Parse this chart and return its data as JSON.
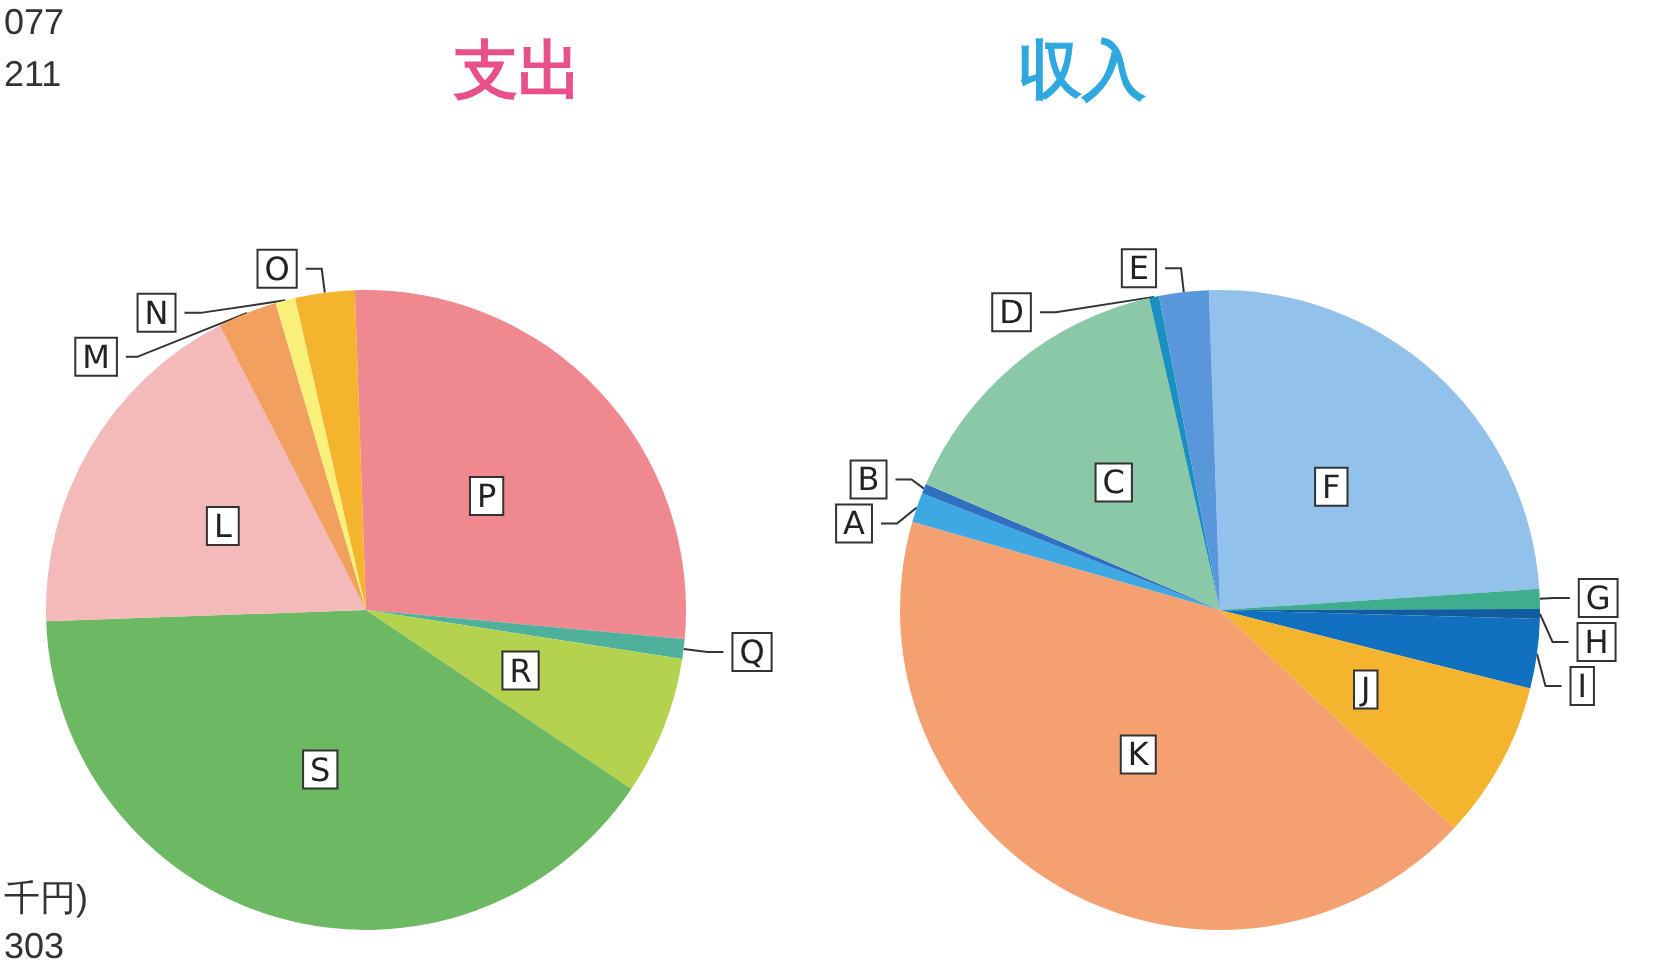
{
  "chart_data": [
    {
      "type": "pie",
      "title": "支出",
      "legend": false,
      "annotations": [
        "077",
        "211",
        "千円)",
        "303"
      ],
      "categories": [
        "P",
        "Q",
        "R",
        "S",
        "L",
        "M",
        "N",
        "O"
      ],
      "values": [
        27,
        1,
        7,
        40,
        18,
        3,
        1,
        3
      ],
      "colors": [
        "#f0888f",
        "#4fb09c",
        "#b4d24e",
        "#6db862",
        "#f4b9b9",
        "#f2a060",
        "#f9f07a",
        "#f5b42e"
      ]
    },
    {
      "type": "pie",
      "title": "収入",
      "legend": false,
      "categories": [
        "F",
        "G",
        "H",
        "I",
        "J",
        "K",
        "A",
        "B",
        "C",
        "D",
        "E"
      ],
      "values": [
        24.5,
        1,
        0.5,
        3.5,
        8,
        42.5,
        1.5,
        0.5,
        15,
        0.5,
        2.5
      ],
      "colors": [
        "#92c2ec",
        "#3fae8e",
        "#105c9e",
        "#1270c0",
        "#f5b42e",
        "#f5a070",
        "#3ea8e2",
        "#3070c0",
        "#8ac8a8",
        "#1a90c0",
        "#5a96da"
      ]
    }
  ]
}
